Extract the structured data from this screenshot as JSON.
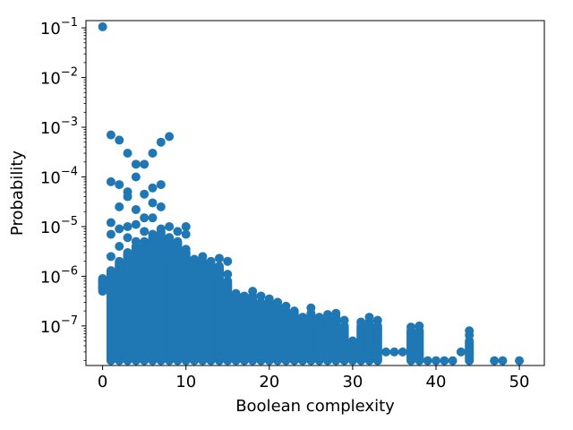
{
  "chart_data": {
    "type": "scatter",
    "title": "",
    "xlabel": "Boolean complexity",
    "ylabel": "Probability",
    "xlim": [
      -2,
      53
    ],
    "ylim": [
      1.6e-08,
      0.14
    ],
    "yscale": "log",
    "grid": false,
    "legend": "none",
    "color": "#1f77b4",
    "x_ticks": [
      0,
      10,
      20,
      30,
      40,
      50
    ],
    "x_tick_labels": [
      "0",
      "10",
      "20",
      "30",
      "40",
      "50"
    ],
    "y_ticks": [
      0.1,
      0.01,
      0.001,
      0.0001,
      1e-05,
      1e-06,
      1e-07
    ],
    "y_tick_labels": [
      {
        "base": "10",
        "exp": "−1"
      },
      {
        "base": "10",
        "exp": "−2"
      },
      {
        "base": "10",
        "exp": "−3"
      },
      {
        "base": "10",
        "exp": "−4"
      },
      {
        "base": "10",
        "exp": "−5"
      },
      {
        "base": "10",
        "exp": "−6"
      },
      {
        "base": "10",
        "exp": "−7"
      }
    ],
    "points": [
      [
        0,
        0.105
      ],
      [
        0,
        8e-07
      ],
      [
        0,
        6e-07
      ],
      [
        1,
        0.0007
      ],
      [
        1,
        8e-05
      ],
      [
        1,
        1.2e-05
      ],
      [
        1,
        7e-06
      ],
      [
        1,
        2.5e-06
      ],
      [
        1,
        1e-06
      ],
      [
        2,
        0.00055
      ],
      [
        2,
        7e-05
      ],
      [
        2,
        2.5e-05
      ],
      [
        2,
        9e-06
      ],
      [
        2,
        4e-06
      ],
      [
        2,
        1.5e-06
      ],
      [
        2,
        9e-07
      ],
      [
        3,
        0.0003
      ],
      [
        3,
        5e-05
      ],
      [
        3,
        4e-05
      ],
      [
        3,
        1e-05
      ],
      [
        3,
        6e-06
      ],
      [
        3,
        2e-06
      ],
      [
        3,
        1.2e-06
      ],
      [
        4,
        0.00018
      ],
      [
        4,
        0.0001
      ],
      [
        4,
        2.2e-05
      ],
      [
        4,
        1.1e-05
      ],
      [
        4,
        5e-06
      ],
      [
        4,
        3e-06
      ],
      [
        4,
        1.5e-06
      ],
      [
        5,
        0.00018
      ],
      [
        5,
        4.5e-05
      ],
      [
        5,
        1.5e-05
      ],
      [
        5,
        8e-06
      ],
      [
        5,
        4e-06
      ],
      [
        5,
        2e-06
      ],
      [
        6,
        0.0003
      ],
      [
        6,
        6e-05
      ],
      [
        6,
        3e-05
      ],
      [
        6,
        1.5e-05
      ],
      [
        6,
        7e-06
      ],
      [
        6,
        3e-06
      ],
      [
        6,
        1.5e-06
      ],
      [
        7,
        0.0005
      ],
      [
        7,
        7e-05
      ],
      [
        7,
        2.5e-05
      ],
      [
        7,
        9e-06
      ],
      [
        7,
        4.5e-06
      ],
      [
        7,
        2e-06
      ],
      [
        8,
        0.00065
      ],
      [
        8,
        1e-05
      ],
      [
        8,
        6e-06
      ],
      [
        8,
        3e-06
      ],
      [
        8,
        1.5e-06
      ],
      [
        9,
        8e-06
      ],
      [
        9,
        4e-06
      ],
      [
        9,
        2e-06
      ],
      [
        9,
        1e-06
      ],
      [
        10,
        1e-05
      ],
      [
        10,
        7e-06
      ],
      [
        10,
        3.5e-06
      ],
      [
        10,
        1.8e-06
      ],
      [
        11,
        2e-06
      ],
      [
        11,
        1.2e-06
      ],
      [
        12,
        2.5e-06
      ],
      [
        12,
        1.5e-06
      ],
      [
        13,
        2e-06
      ],
      [
        13,
        1.2e-06
      ],
      [
        14,
        2.3e-06
      ],
      [
        14,
        1.3e-06
      ],
      [
        15,
        2e-06
      ],
      [
        15,
        1.1e-06
      ],
      [
        16,
        4.5e-07
      ],
      [
        17,
        4e-07
      ],
      [
        18,
        5e-07
      ],
      [
        19,
        4e-07
      ],
      [
        20,
        3.5e-07
      ],
      [
        21,
        3e-07
      ],
      [
        22,
        2.5e-07
      ],
      [
        23,
        2e-07
      ],
      [
        24,
        1.5e-07
      ],
      [
        25,
        2.3e-07
      ],
      [
        26,
        1.5e-07
      ],
      [
        27,
        1.7e-07
      ],
      [
        28,
        1.8e-07
      ],
      [
        29,
        1.3e-07
      ],
      [
        30,
        5e-08
      ],
      [
        31,
        1.2e-07
      ],
      [
        32,
        1.5e-07
      ],
      [
        33,
        1.3e-07
      ],
      [
        34,
        3e-08
      ],
      [
        35,
        3e-08
      ],
      [
        36,
        3e-08
      ],
      [
        37,
        9.5e-08
      ],
      [
        38,
        1e-07
      ],
      [
        39,
        2e-08
      ],
      [
        40,
        2e-08
      ],
      [
        41,
        2e-08
      ],
      [
        42,
        2e-08
      ],
      [
        43,
        3e-08
      ],
      [
        44,
        8e-08
      ],
      [
        44,
        6.5e-08
      ],
      [
        44,
        3e-08
      ],
      [
        47,
        2e-08
      ],
      [
        48,
        2e-08
      ],
      [
        50,
        2e-08
      ]
    ],
    "columns": [
      {
        "x": 0,
        "lo": 5e-07,
        "hi": 9e-07
      },
      {
        "x": 1,
        "lo": 2e-08,
        "hi": 1.3e-06
      },
      {
        "x": 2,
        "lo": 2e-08,
        "hi": 2e-06
      },
      {
        "x": 3,
        "lo": 2e-08,
        "hi": 3e-06
      },
      {
        "x": 4,
        "lo": 2e-08,
        "hi": 4e-06
      },
      {
        "x": 5,
        "lo": 2e-08,
        "hi": 5e-06
      },
      {
        "x": 6,
        "lo": 2e-08,
        "hi": 6e-06
      },
      {
        "x": 7,
        "lo": 2e-08,
        "hi": 8e-06
      },
      {
        "x": 8,
        "lo": 2e-08,
        "hi": 6e-06
      },
      {
        "x": 9,
        "lo": 2e-08,
        "hi": 5e-06
      },
      {
        "x": 10,
        "lo": 2e-08,
        "hi": 3e-06
      },
      {
        "x": 11,
        "lo": 2e-08,
        "hi": 2.2e-06
      },
      {
        "x": 12,
        "lo": 2e-08,
        "hi": 2e-06
      },
      {
        "x": 13,
        "lo": 2e-08,
        "hi": 1.8e-06
      },
      {
        "x": 14,
        "lo": 2e-08,
        "hi": 1.6e-06
      },
      {
        "x": 15,
        "lo": 2e-08,
        "hi": 8e-07
      },
      {
        "x": 16,
        "lo": 2e-08,
        "hi": 4e-07
      },
      {
        "x": 17,
        "lo": 2e-08,
        "hi": 3.5e-07
      },
      {
        "x": 18,
        "lo": 2e-08,
        "hi": 4e-07
      },
      {
        "x": 19,
        "lo": 2e-08,
        "hi": 3e-07
      },
      {
        "x": 20,
        "lo": 2e-08,
        "hi": 3e-07
      },
      {
        "x": 21,
        "lo": 2e-08,
        "hi": 2.5e-07
      },
      {
        "x": 22,
        "lo": 2e-08,
        "hi": 2e-07
      },
      {
        "x": 23,
        "lo": 2e-08,
        "hi": 1.8e-07
      },
      {
        "x": 24,
        "lo": 2e-08,
        "hi": 1.2e-07
      },
      {
        "x": 25,
        "lo": 2e-08,
        "hi": 1.8e-07
      },
      {
        "x": 26,
        "lo": 2e-08,
        "hi": 1.2e-07
      },
      {
        "x": 27,
        "lo": 2e-08,
        "hi": 1.4e-07
      },
      {
        "x": 28,
        "lo": 2e-08,
        "hi": 1.5e-07
      },
      {
        "x": 29,
        "lo": 2e-08,
        "hi": 1e-07
      },
      {
        "x": 30,
        "lo": 2e-08,
        "hi": 4e-08
      },
      {
        "x": 31,
        "lo": 2e-08,
        "hi": 1e-07
      },
      {
        "x": 32,
        "lo": 2e-08,
        "hi": 1.2e-07
      },
      {
        "x": 33,
        "lo": 2e-08,
        "hi": 1e-07
      },
      {
        "x": 37,
        "lo": 2e-08,
        "hi": 8e-08
      },
      {
        "x": 38,
        "lo": 2e-08,
        "hi": 8e-08
      },
      {
        "x": 44,
        "lo": 2e-08,
        "hi": 5e-08
      }
    ]
  }
}
